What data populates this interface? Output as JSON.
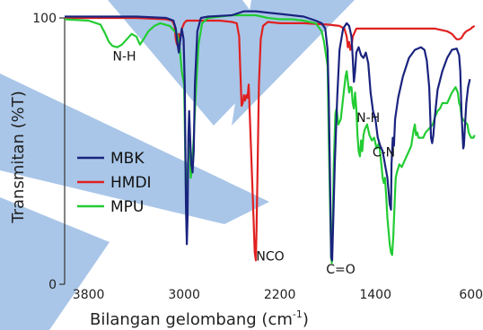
{
  "chart_data": {
    "type": "line",
    "ylabel": "Transmitan (%T)",
    "xlabel": "Bilangan gelombang  (cm",
    "xlabel_sup": "-1",
    "xlabel_end": ")",
    "xlim": [
      4000,
      500
    ],
    "ylim": [
      0,
      100
    ],
    "xticks": [
      3800,
      3000,
      2200,
      1400,
      600
    ],
    "yticks": [
      0,
      100
    ],
    "legend_position": "middle-left",
    "annotations": [
      {
        "text": "N-H",
        "x": 3500,
        "y": 84
      },
      {
        "text": "N-H",
        "x": 1460,
        "y": 61
      },
      {
        "text": "C-N",
        "x": 1330,
        "y": 48
      },
      {
        "text": "NCO",
        "x": 2280,
        "y": 9
      },
      {
        "text": "C=O",
        "x": 1690,
        "y": 4
      }
    ],
    "series": [
      {
        "name": "MBK",
        "color": "#1a237e",
        "points": [
          [
            4000,
            100.5
          ],
          [
            3400,
            100.5
          ],
          [
            3150,
            100
          ],
          [
            3090,
            99
          ],
          [
            3070,
            96
          ],
          [
            3055,
            90
          ],
          [
            3045,
            87
          ],
          [
            3035,
            91
          ],
          [
            3020,
            96
          ],
          [
            3005,
            92
          ],
          [
            2995,
            75
          ],
          [
            2985,
            30
          ],
          [
            2978,
            15
          ],
          [
            2972,
            25
          ],
          [
            2965,
            55
          ],
          [
            2958,
            65
          ],
          [
            2950,
            55
          ],
          [
            2940,
            45
          ],
          [
            2930,
            42
          ],
          [
            2920,
            50
          ],
          [
            2910,
            75
          ],
          [
            2890,
            95
          ],
          [
            2860,
            100
          ],
          [
            2800,
            100.5
          ],
          [
            2600,
            101
          ],
          [
            2500,
            102.5
          ],
          [
            2400,
            102.5
          ],
          [
            2300,
            102
          ],
          [
            2200,
            101.5
          ],
          [
            2100,
            101
          ],
          [
            2000,
            100.5
          ],
          [
            1900,
            99
          ],
          [
            1850,
            98
          ],
          [
            1820,
            96
          ],
          [
            1800,
            88
          ],
          [
            1790,
            70
          ],
          [
            1780,
            40
          ],
          [
            1770,
            10
          ],
          [
            1762,
            9
          ],
          [
            1755,
            20
          ],
          [
            1740,
            45
          ],
          [
            1720,
            70
          ],
          [
            1700,
            88
          ],
          [
            1670,
            96
          ],
          [
            1640,
            98
          ],
          [
            1620,
            97
          ],
          [
            1600,
            93
          ],
          [
            1590,
            85
          ],
          [
            1580,
            76
          ],
          [
            1570,
            80
          ],
          [
            1560,
            87
          ],
          [
            1540,
            89
          ],
          [
            1520,
            86
          ],
          [
            1500,
            85
          ],
          [
            1480,
            87
          ],
          [
            1460,
            83
          ],
          [
            1440,
            72
          ],
          [
            1420,
            65
          ],
          [
            1400,
            62
          ],
          [
            1380,
            55
          ],
          [
            1360,
            52
          ],
          [
            1340,
            50
          ],
          [
            1320,
            45
          ],
          [
            1300,
            40
          ],
          [
            1280,
            30
          ],
          [
            1270,
            28
          ],
          [
            1265,
            45
          ],
          [
            1255,
            55
          ],
          [
            1245,
            52
          ],
          [
            1235,
            62
          ],
          [
            1210,
            70
          ],
          [
            1170,
            78
          ],
          [
            1120,
            85
          ],
          [
            1070,
            88
          ],
          [
            1020,
            89
          ],
          [
            990,
            88
          ],
          [
            970,
            84
          ],
          [
            950,
            74
          ],
          [
            935,
            55
          ],
          [
            925,
            53
          ],
          [
            915,
            56
          ],
          [
            905,
            62
          ],
          [
            880,
            73
          ],
          [
            840,
            80
          ],
          [
            800,
            85
          ],
          [
            760,
            88
          ],
          [
            720,
            88.5
          ],
          [
            700,
            86
          ],
          [
            690,
            80
          ],
          [
            680,
            65
          ],
          [
            670,
            55
          ],
          [
            665,
            51
          ],
          [
            660,
            52
          ],
          [
            650,
            60
          ],
          [
            640,
            68
          ],
          [
            625,
            74
          ],
          [
            610,
            77
          ]
        ]
      },
      {
        "name": "HMDI",
        "color": "#e02020",
        "points": [
          [
            4000,
            100
          ],
          [
            3400,
            100
          ],
          [
            3150,
            99.5
          ],
          [
            3100,
            99
          ],
          [
            3080,
            97
          ],
          [
            3070,
            92
          ],
          [
            3060,
            90
          ],
          [
            3050,
            91
          ],
          [
            3045,
            94
          ],
          [
            3040,
            89
          ],
          [
            3035,
            92
          ],
          [
            3020,
            96
          ],
          [
            3000,
            98
          ],
          [
            2980,
            99
          ],
          [
            2900,
            99
          ],
          [
            2700,
            99
          ],
          [
            2600,
            98.5
          ],
          [
            2560,
            98
          ],
          [
            2540,
            93
          ],
          [
            2530,
            80
          ],
          [
            2520,
            67
          ],
          [
            2510,
            68
          ],
          [
            2500,
            71
          ],
          [
            2490,
            69
          ],
          [
            2480,
            71
          ],
          [
            2470,
            70
          ],
          [
            2460,
            75
          ],
          [
            2440,
            50
          ],
          [
            2420,
            25
          ],
          [
            2410,
            12
          ],
          [
            2400,
            9
          ],
          [
            2395,
            20
          ],
          [
            2385,
            45
          ],
          [
            2375,
            75
          ],
          [
            2360,
            92
          ],
          [
            2340,
            97
          ],
          [
            2300,
            98.5
          ],
          [
            2200,
            98
          ],
          [
            2000,
            98
          ],
          [
            1800,
            97.5
          ],
          [
            1700,
            97
          ],
          [
            1660,
            96
          ],
          [
            1640,
            93
          ],
          [
            1630,
            89
          ],
          [
            1620,
            91
          ],
          [
            1610,
            88
          ],
          [
            1600,
            89
          ],
          [
            1590,
            93
          ],
          [
            1560,
            96
          ],
          [
            1500,
            96
          ],
          [
            1400,
            96
          ],
          [
            1300,
            96
          ],
          [
            1200,
            96
          ],
          [
            1100,
            96
          ],
          [
            1000,
            96
          ],
          [
            900,
            96
          ],
          [
            800,
            95
          ],
          [
            760,
            94
          ],
          [
            740,
            93
          ],
          [
            720,
            92
          ],
          [
            700,
            92
          ],
          [
            680,
            92.5
          ],
          [
            660,
            94
          ],
          [
            640,
            95
          ],
          [
            620,
            95.5
          ],
          [
            600,
            96
          ],
          [
            590,
            96.5
          ],
          [
            570,
            97
          ]
        ]
      },
      {
        "name": "MPU",
        "color": "#22cc33",
        "points": [
          [
            4000,
            99.5
          ],
          [
            3800,
            99
          ],
          [
            3700,
            97.5
          ],
          [
            3660,
            94
          ],
          [
            3630,
            91
          ],
          [
            3600,
            89.5
          ],
          [
            3560,
            89
          ],
          [
            3520,
            90
          ],
          [
            3480,
            92
          ],
          [
            3440,
            94
          ],
          [
            3400,
            93
          ],
          [
            3370,
            90
          ],
          [
            3340,
            92
          ],
          [
            3300,
            95
          ],
          [
            3250,
            97
          ],
          [
            3200,
            98
          ],
          [
            3120,
            97
          ],
          [
            3080,
            95
          ],
          [
            3060,
            94
          ],
          [
            3040,
            90
          ],
          [
            3020,
            80
          ],
          [
            3000,
            75
          ],
          [
            2990,
            45
          ],
          [
            2980,
            20
          ],
          [
            2975,
            35
          ],
          [
            2965,
            50
          ],
          [
            2955,
            55
          ],
          [
            2945,
            40
          ],
          [
            2935,
            43
          ],
          [
            2920,
            55
          ],
          [
            2905,
            70
          ],
          [
            2880,
            90
          ],
          [
            2850,
            98
          ],
          [
            2800,
            100
          ],
          [
            2700,
            100.5
          ],
          [
            2600,
            101
          ],
          [
            2500,
            101
          ],
          [
            2400,
            101
          ],
          [
            2300,
            100
          ],
          [
            2200,
            99.5
          ],
          [
            2100,
            99.5
          ],
          [
            2000,
            99
          ],
          [
            1900,
            98
          ],
          [
            1850,
            95
          ],
          [
            1830,
            91
          ],
          [
            1810,
            85
          ],
          [
            1800,
            82
          ],
          [
            1790,
            55
          ],
          [
            1780,
            30
          ],
          [
            1770,
            10
          ],
          [
            1765,
            8
          ],
          [
            1758,
            20
          ],
          [
            1748,
            45
          ],
          [
            1735,
            64
          ],
          [
            1725,
            66
          ],
          [
            1710,
            60
          ],
          [
            1690,
            62
          ],
          [
            1670,
            70
          ],
          [
            1650,
            78
          ],
          [
            1640,
            80
          ],
          [
            1630,
            76
          ],
          [
            1620,
            72
          ],
          [
            1610,
            74
          ],
          [
            1600,
            74
          ],
          [
            1590,
            68
          ],
          [
            1580,
            66
          ],
          [
            1570,
            72
          ],
          [
            1560,
            66
          ],
          [
            1550,
            56
          ],
          [
            1540,
            50
          ],
          [
            1530,
            48
          ],
          [
            1520,
            54
          ],
          [
            1510,
            50
          ],
          [
            1500,
            56
          ],
          [
            1490,
            58
          ],
          [
            1470,
            60
          ],
          [
            1450,
            56
          ],
          [
            1430,
            54
          ],
          [
            1410,
            55
          ],
          [
            1390,
            51
          ],
          [
            1370,
            53
          ],
          [
            1350,
            45
          ],
          [
            1340,
            40
          ],
          [
            1330,
            38
          ],
          [
            1320,
            40
          ],
          [
            1310,
            33
          ],
          [
            1300,
            25
          ],
          [
            1290,
            20
          ],
          [
            1280,
            15
          ],
          [
            1270,
            12
          ],
          [
            1260,
            11
          ],
          [
            1250,
            18
          ],
          [
            1240,
            30
          ],
          [
            1230,
            40
          ],
          [
            1220,
            42
          ],
          [
            1200,
            45
          ],
          [
            1180,
            44
          ],
          [
            1160,
            46
          ],
          [
            1140,
            48
          ],
          [
            1120,
            50
          ],
          [
            1100,
            52
          ],
          [
            1080,
            58
          ],
          [
            1070,
            60
          ],
          [
            1060,
            56
          ],
          [
            1050,
            57
          ],
          [
            1040,
            55
          ],
          [
            1020,
            55
          ],
          [
            1000,
            55
          ],
          [
            980,
            57
          ],
          [
            960,
            58
          ],
          [
            940,
            59
          ],
          [
            920,
            60
          ],
          [
            900,
            63
          ],
          [
            880,
            65
          ],
          [
            860,
            66
          ],
          [
            840,
            68
          ],
          [
            800,
            68
          ],
          [
            760,
            72
          ],
          [
            730,
            74
          ],
          [
            710,
            72
          ],
          [
            700,
            68
          ],
          [
            690,
            67
          ],
          [
            680,
            63
          ],
          [
            670,
            62
          ],
          [
            650,
            61
          ],
          [
            630,
            60
          ],
          [
            620,
            57
          ],
          [
            600,
            55
          ],
          [
            580,
            55
          ],
          [
            570,
            56
          ]
        ]
      }
    ]
  }
}
